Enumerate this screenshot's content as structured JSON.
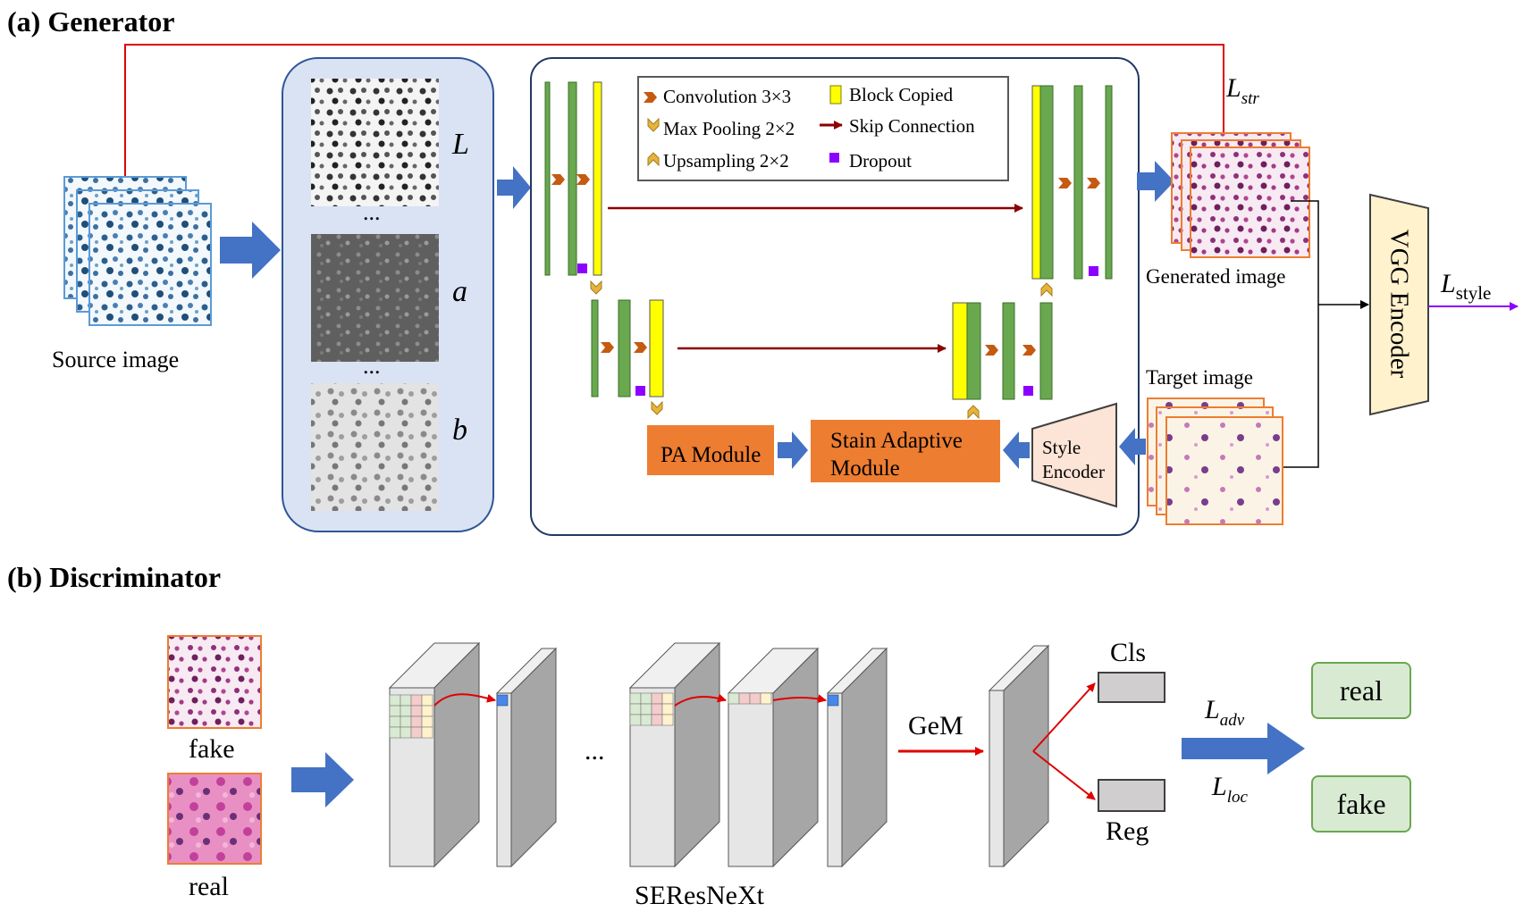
{
  "generator": {
    "section_title": "(a) Generator",
    "source_caption": "Source image",
    "channel_labels": [
      "L",
      "a",
      "b"
    ],
    "ellipsis": "...",
    "legend": {
      "conv": "Convolution 3×3",
      "maxpool": "Max Pooling 2×2",
      "upsample": "Upsampling 2×2",
      "copied": "Block Copied",
      "skip": "Skip Connection",
      "dropout": "Dropout"
    },
    "pa_module": "PA Module",
    "stain_module": "Stain Adaptive Module",
    "style_encoder": "Style Encoder",
    "generated_caption": "Generated image",
    "target_caption": "Target image",
    "vgg_encoder": "VGG Encoder",
    "loss_str": {
      "symbol": "L",
      "subscript": "str"
    },
    "loss_style": {
      "symbol": "L",
      "subscript": "style"
    }
  },
  "discriminator": {
    "section_title": "(b) Discriminator",
    "fake_caption": "fake",
    "real_caption": "real",
    "ellipsis": "...",
    "gem": "GeM",
    "cls": "Cls",
    "reg": "Reg",
    "backbone": "SEResNeXt",
    "loss_adv": {
      "symbol": "L",
      "subscript": "adv"
    },
    "loss_loc": {
      "symbol": "L",
      "subscript": "loc"
    },
    "out_real": "real",
    "out_fake": "fake"
  },
  "colors": {
    "conv_green": "#6aa84f",
    "copied_yellow": "#ffff00",
    "skip_red": "#8b0000",
    "dropout_purple": "#8b00ff",
    "module_orange": "#ed7d31",
    "arrow_blue": "#4472c4",
    "lab_panel": "#dae3f3",
    "vgg_fill": "#fff2cc",
    "encoder_fill": "#fce4d6",
    "red_line": "#e00000"
  }
}
